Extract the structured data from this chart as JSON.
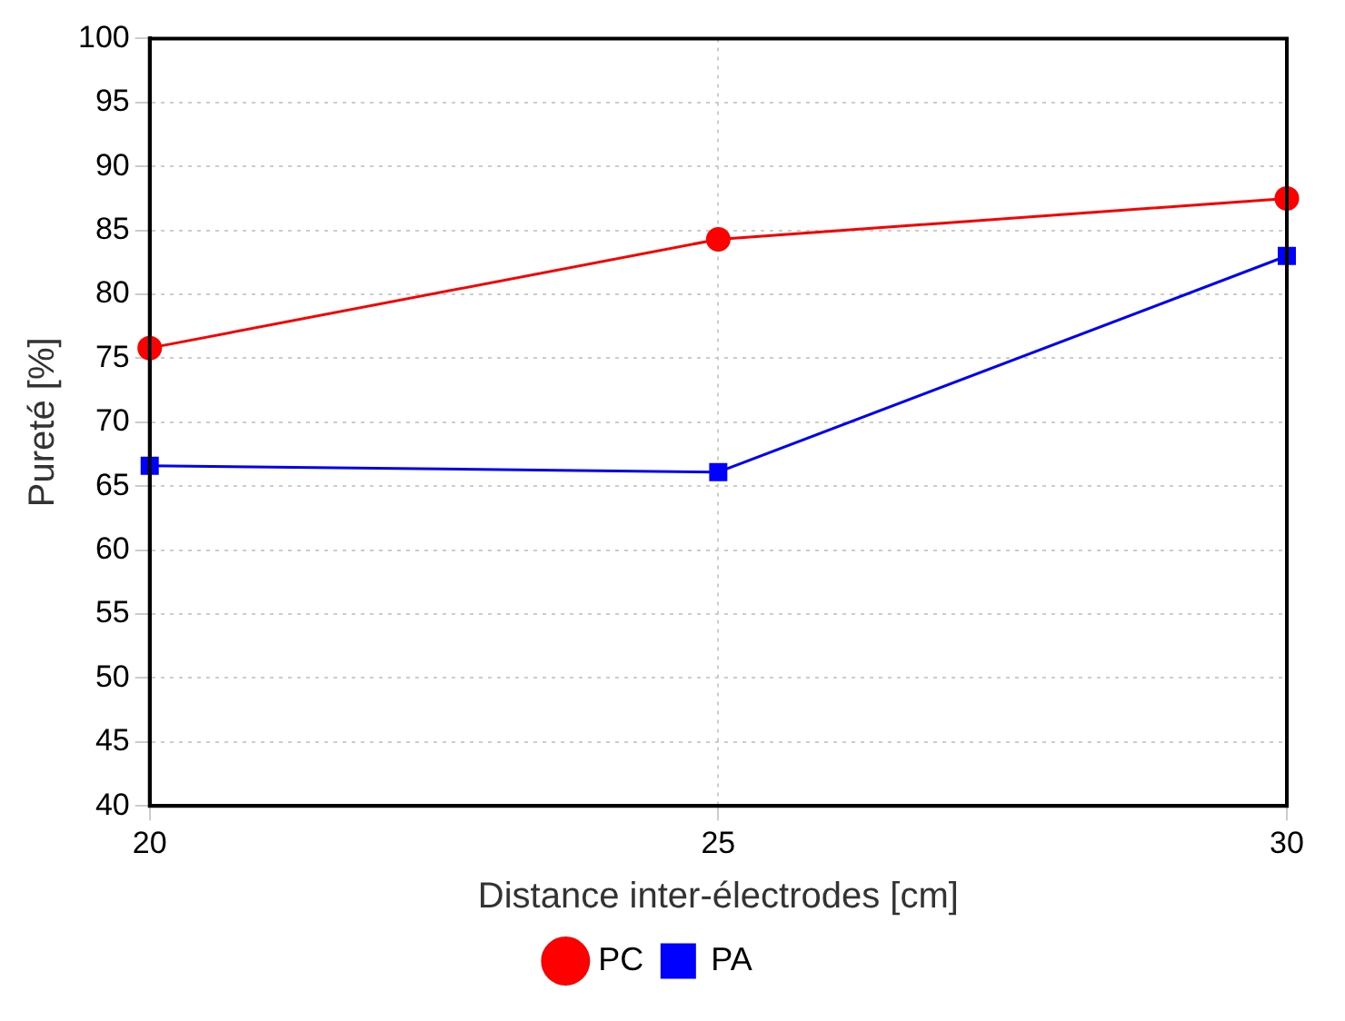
{
  "chart_data": {
    "type": "line",
    "xlabel": "Distance inter-électrodes [cm]",
    "ylabel": "Pureté [%]",
    "x": [
      20,
      25,
      30
    ],
    "xlim": [
      20,
      30
    ],
    "xticks": [
      20,
      25,
      30
    ],
    "ylim": [
      40,
      100
    ],
    "yticks": [
      40,
      45,
      50,
      55,
      60,
      65,
      70,
      75,
      80,
      85,
      90,
      95,
      100
    ],
    "grid": true,
    "legend": "bottom",
    "line_style": "solid",
    "series": [
      {
        "name": "PC",
        "color": "#ff0000",
        "marker": "circle",
        "values": [
          75.8,
          84.3,
          87.5
        ]
      },
      {
        "name": "PA",
        "color": "#0000ff",
        "marker": "square",
        "values": [
          66.6,
          66.1,
          83.0
        ]
      }
    ]
  }
}
